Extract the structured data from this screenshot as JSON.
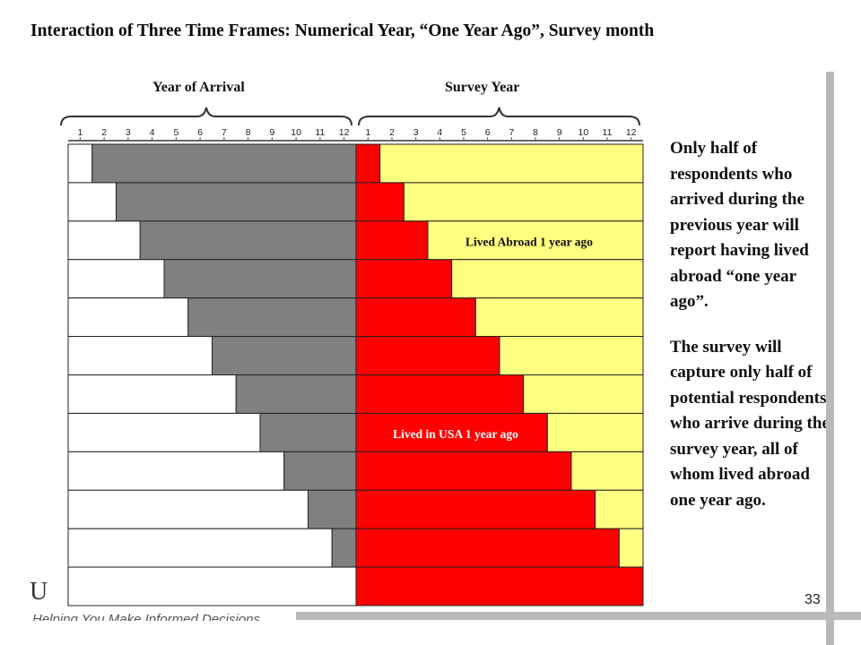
{
  "title": "Interaction of Three Time Frames:  Numerical Year, “One Year Ago”, Survey month",
  "sections": {
    "arrival_label": "Year of Arrival",
    "survey_label": "Survey Year"
  },
  "months": [
    "1",
    "2",
    "3",
    "4",
    "5",
    "6",
    "7",
    "8",
    "9",
    "10",
    "11",
    "12"
  ],
  "rows": 12,
  "annotations": {
    "lived_abroad": "Lived Abroad 1 year ago",
    "lived_usa": "Lived in USA 1 year ago"
  },
  "side_text": {
    "p1": "Only half of respondents who arrived during the previous year will report having lived abroad “one year ago”.",
    "p2": "The survey will capture only half of potential respondents who arrive during the survey year, all of whom lived abroad one year ago."
  },
  "footer": {
    "logo_letter": "U",
    "tagline": "Helping You Make Informed Decisions"
  },
  "page_number": "33",
  "colors": {
    "gray_fill": "#808080",
    "red_fill": "#ff0000",
    "yellow_fill": "#ffff80",
    "white_fill": "#ffffff",
    "outline": "#222222"
  }
}
